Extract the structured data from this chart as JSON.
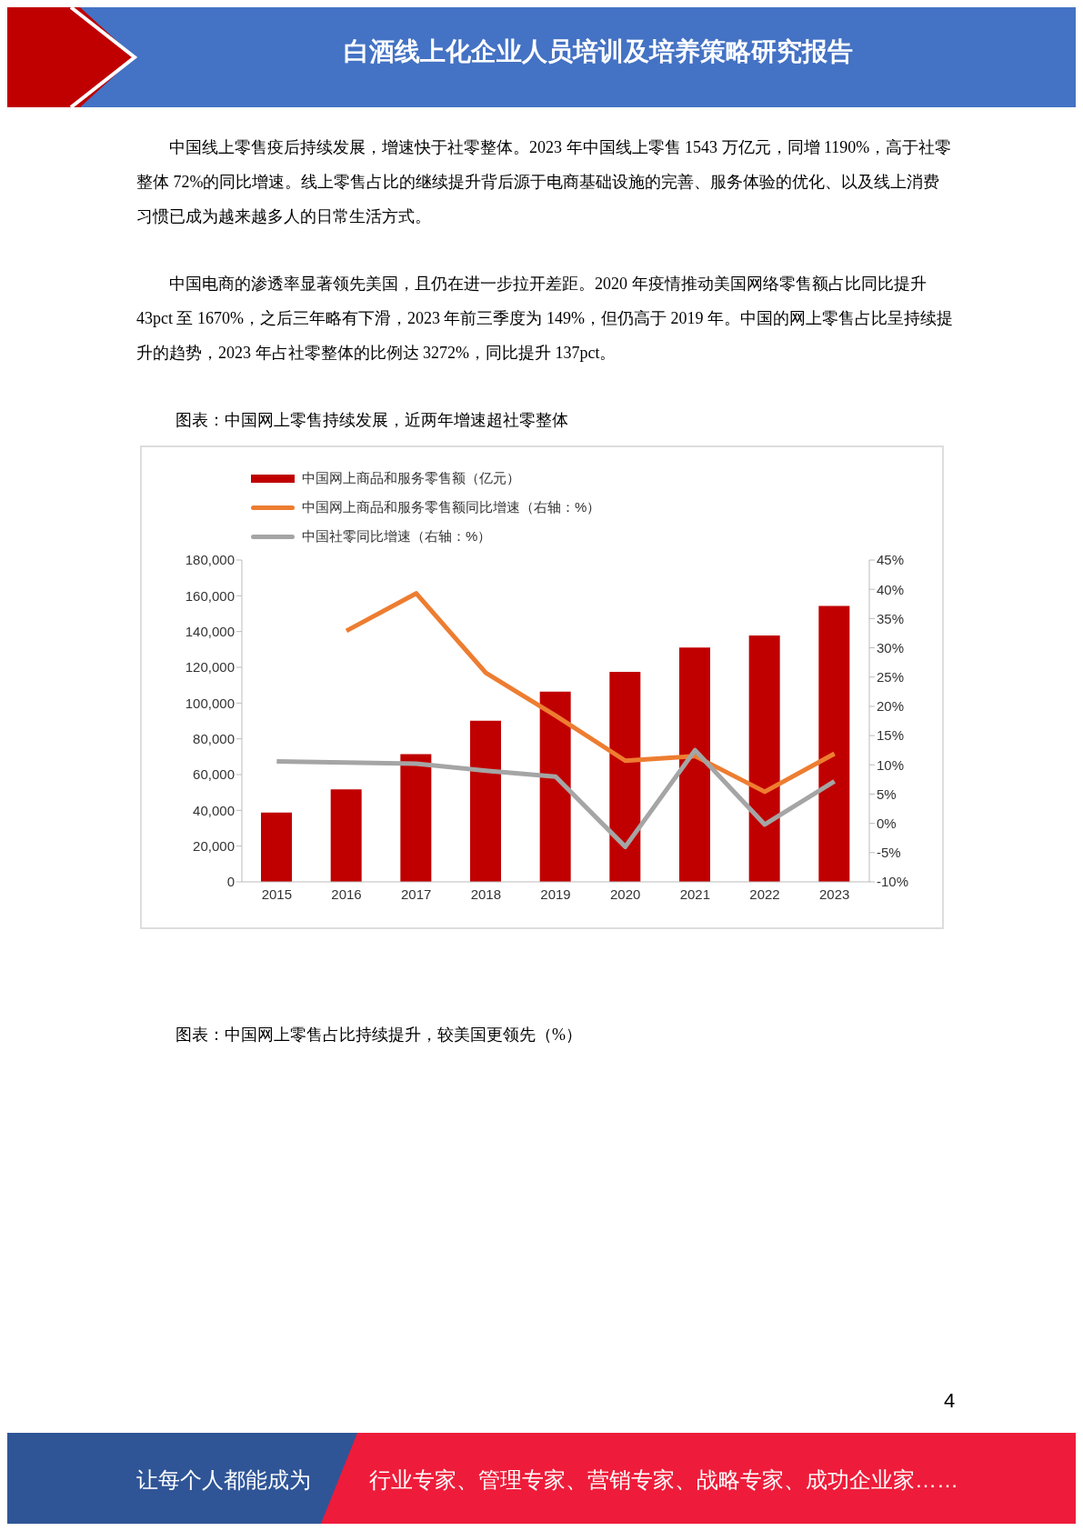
{
  "chart_data": {
    "type": "bar",
    "title": "图表：中国网上零售持续发展，近两年增速超社零整体",
    "annotations": [
      "白酒线上化企业人员培训及培养策略研究报告",
      "中国线上零售疫后持续发展，增速快于社零整体。2023 年中国线上零售 1543 万亿元，同增 1190%，高于社零整体 72%的同比增速。线上零售占比的继续提升背后源于电商基础设施的完善、服务体验的优化、以及线上消费习惯已成为越来越多人的日常生活方式。",
      "中国电商的渗透率显著领先美国，且仍在进一步拉开差距。2020 年疫情推动美国网络零售额占比同比提升 43pct 至 1670%，之后三年略有下滑，2023 年前三季度为 149%，但仍高于 2019 年。中国的网上零售占比呈持续提升的趋势，2023 年占社零整体的比例达 3272%，同比提升 137pct。",
      "图表：中国网上零售占比持续提升，较美国更领先（%）",
      "4",
      "让每个人都能成为",
      "行业专家、管理专家、营销专家、战略专家、成功企业家……"
    ],
    "categories": [
      "2015",
      "2016",
      "2017",
      "2018",
      "2019",
      "2020",
      "2021",
      "2022",
      "2023"
    ],
    "series": [
      {
        "name": "中国网上商品和服务零售额（亿元）",
        "color": "#c00000",
        "values": [
          38800,
          51800,
          71500,
          90100,
          106400,
          117400,
          131100,
          137800,
          154300
        ]
      },
      {
        "name": "中国网上商品和服务零售额同比增速（右轴：%）",
        "type": "line",
        "axis": "y2",
        "color": "#ed7d31",
        "values": [
          null,
          32.9,
          39.3,
          25.7,
          18.4,
          10.7,
          11.5,
          5.4,
          11.9
        ]
      },
      {
        "name": "中国社零同比增速（右轴：%）",
        "type": "line",
        "axis": "y2",
        "color": "#a5a5a5",
        "values": [
          10.6,
          10.4,
          10.2,
          9.0,
          8.0,
          -4.0,
          12.5,
          -0.2,
          7.2
        ]
      }
    ],
    "ylim": [
      0,
      180000
    ],
    "yticks": [
      {
        "value": 0,
        "label": "0"
      },
      {
        "value": 20000,
        "label": "20,000"
      },
      {
        "value": 40000,
        "label": "40,000"
      },
      {
        "value": 60000,
        "label": "60,000"
      },
      {
        "value": 80000,
        "label": "80,000"
      },
      {
        "value": 100000,
        "label": "100,000"
      },
      {
        "value": 120000,
        "label": "120,000"
      },
      {
        "value": 140000,
        "label": "140,000"
      },
      {
        "value": 160000,
        "label": "160,000"
      },
      {
        "value": 180000,
        "label": "180,000"
      }
    ],
    "y2lim": [
      -10,
      45
    ],
    "y2ticks": [
      {
        "value": -10,
        "label": "-10%"
      },
      {
        "value": -5,
        "label": "-5%"
      },
      {
        "value": 0,
        "label": "0%"
      },
      {
        "value": 5,
        "label": "5%"
      },
      {
        "value": 10,
        "label": "10%"
      },
      {
        "value": 15,
        "label": "15%"
      },
      {
        "value": 20,
        "label": "20%"
      },
      {
        "value": 25,
        "label": "25%"
      },
      {
        "value": 30,
        "label": "30%"
      },
      {
        "value": 35,
        "label": "35%"
      },
      {
        "value": 40,
        "label": "40%"
      },
      {
        "value": 45,
        "label": "45%"
      }
    ],
    "grid": false,
    "legend": "top",
    "marker": "none",
    "line_style": "solid"
  }
}
